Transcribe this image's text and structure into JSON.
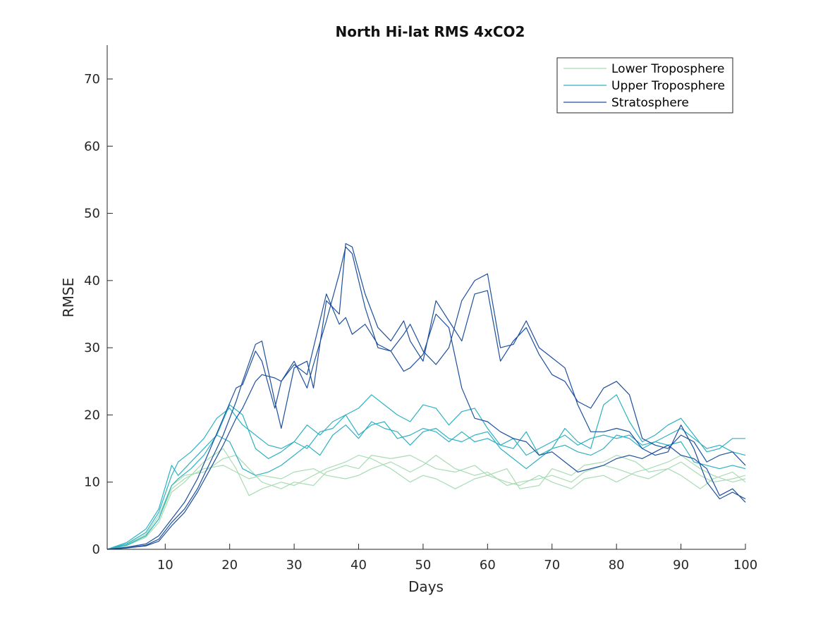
{
  "chart_data": {
    "type": "line",
    "title": "North Hi-lat RMS 4xCO2",
    "xlabel": "Days",
    "ylabel": "RMSE",
    "xlim": [
      1,
      100
    ],
    "ylim": [
      0,
      75
    ],
    "xticks": [
      10,
      20,
      30,
      40,
      50,
      60,
      70,
      80,
      90,
      100
    ],
    "yticks": [
      0,
      10,
      20,
      30,
      40,
      50,
      60,
      70
    ],
    "grid": false,
    "legend_position": "top-right",
    "legend": [
      {
        "label": "Lower Troposphere",
        "color": "#a8dcb4"
      },
      {
        "label": "Upper Troposphere",
        "color": "#2eb1c2"
      },
      {
        "label": "Stratosphere",
        "color": "#1d4f9c"
      }
    ],
    "series": [
      {
        "group": 0,
        "color": "#a8dcb4",
        "x": [
          1,
          4,
          7,
          9,
          11,
          13,
          16,
          19,
          21,
          23,
          25,
          28,
          30,
          33,
          35,
          38,
          40,
          42,
          45,
          48,
          50,
          52,
          55,
          58,
          60,
          63,
          65,
          68,
          70,
          73,
          75,
          78,
          80,
          83,
          85,
          88,
          90,
          93,
          95,
          98,
          100
        ],
        "y": [
          0,
          0.6,
          2.0,
          4.5,
          9.0,
          10.5,
          12.0,
          12.5,
          11.5,
          10.5,
          11.0,
          10.5,
          11.5,
          12.0,
          11.0,
          10.5,
          11.0,
          12.0,
          13.0,
          11.5,
          12.5,
          14.0,
          12.0,
          11.0,
          11.5,
          9.5,
          10.0,
          10.5,
          11.0,
          10.0,
          11.5,
          12.5,
          12.0,
          11.0,
          10.5,
          12.0,
          13.0,
          11.0,
          10.0,
          10.5,
          11.0
        ]
      },
      {
        "group": 0,
        "color": "#a8dcb4",
        "x": [
          1,
          4,
          7,
          9,
          11,
          13,
          16,
          19,
          21,
          23,
          25,
          28,
          30,
          33,
          35,
          38,
          40,
          42,
          45,
          48,
          50,
          52,
          55,
          58,
          60,
          63,
          65,
          68,
          70,
          73,
          75,
          78,
          80,
          83,
          85,
          88,
          90,
          93,
          95,
          98,
          100
        ],
        "y": [
          0,
          0.5,
          1.8,
          4.0,
          8.5,
          10.0,
          13.0,
          15.0,
          12.0,
          8.0,
          9.0,
          10.0,
          9.5,
          11.0,
          12.0,
          13.0,
          14.0,
          13.5,
          12.0,
          10.0,
          11.0,
          10.5,
          9.0,
          10.5,
          11.0,
          10.0,
          9.5,
          11.0,
          10.0,
          9.0,
          10.5,
          11.0,
          10.0,
          11.5,
          12.0,
          13.0,
          14.0,
          12.0,
          11.0,
          10.0,
          10.5
        ]
      },
      {
        "group": 0,
        "color": "#a8dcb4",
        "x": [
          1,
          4,
          7,
          9,
          11,
          13,
          16,
          19,
          21,
          23,
          25,
          28,
          30,
          33,
          35,
          38,
          40,
          42,
          45,
          48,
          50,
          52,
          55,
          58,
          60,
          63,
          65,
          68,
          70,
          73,
          75,
          78,
          80,
          83,
          85,
          88,
          90,
          93,
          95,
          98,
          100
        ],
        "y": [
          0,
          0.7,
          2.2,
          5.0,
          9.5,
          11.0,
          11.5,
          13.5,
          14.0,
          12.0,
          10.0,
          9.0,
          10.0,
          9.5,
          11.5,
          12.5,
          12.0,
          14.0,
          13.5,
          14.0,
          13.0,
          12.0,
          11.5,
          12.5,
          11.0,
          12.0,
          9.0,
          9.5,
          12.0,
          11.0,
          12.5,
          13.0,
          14.0,
          13.0,
          11.5,
          12.0,
          11.0,
          9.0,
          10.5,
          11.5,
          10.0
        ]
      },
      {
        "group": 1,
        "color": "#2eb1c2",
        "x": [
          1,
          4,
          7,
          9,
          11,
          12,
          14,
          16,
          18,
          20,
          22,
          24,
          26,
          28,
          30,
          32,
          34,
          36,
          38,
          40,
          42,
          44,
          46,
          48,
          50,
          52,
          54,
          56,
          58,
          60,
          62,
          64,
          66,
          68,
          70,
          72,
          74,
          76,
          78,
          80,
          82,
          84,
          86,
          88,
          90,
          92,
          94,
          96,
          98,
          100
        ],
        "y": [
          0,
          0.8,
          2.5,
          5.5,
          11.0,
          13.0,
          14.5,
          16.5,
          19.5,
          21.0,
          18.5,
          17.0,
          15.5,
          15.0,
          16.0,
          18.5,
          17.0,
          19.0,
          20.0,
          17.0,
          18.5,
          19.0,
          16.5,
          17.0,
          18.0,
          17.5,
          16.0,
          17.5,
          16.0,
          16.5,
          15.5,
          16.5,
          14.0,
          15.0,
          16.0,
          17.0,
          15.5,
          16.5,
          17.0,
          16.5,
          17.0,
          15.5,
          16.0,
          17.0,
          18.0,
          16.5,
          15.0,
          15.5,
          14.5,
          14.0
        ]
      },
      {
        "group": 1,
        "color": "#2eb1c2",
        "x": [
          1,
          4,
          7,
          9,
          11,
          12,
          14,
          16,
          18,
          20,
          22,
          24,
          26,
          28,
          30,
          32,
          34,
          36,
          38,
          40,
          42,
          44,
          46,
          48,
          50,
          52,
          54,
          56,
          58,
          60,
          62,
          64,
          66,
          68,
          70,
          72,
          74,
          76,
          78,
          80,
          82,
          84,
          86,
          88,
          90,
          92,
          94,
          96,
          98,
          100
        ],
        "y": [
          0,
          1.0,
          3.0,
          6.0,
          12.5,
          11.0,
          13.0,
          15.0,
          17.0,
          21.5,
          20.0,
          15.0,
          13.5,
          14.5,
          16.0,
          15.0,
          17.5,
          18.0,
          20.0,
          21.0,
          23.0,
          21.5,
          20.0,
          19.0,
          21.5,
          21.0,
          18.5,
          20.5,
          21.0,
          18.0,
          15.5,
          15.0,
          17.5,
          14.0,
          15.0,
          18.0,
          16.0,
          15.0,
          21.5,
          23.0,
          19.0,
          16.0,
          17.0,
          18.5,
          19.5,
          17.0,
          14.5,
          15.0,
          16.5,
          16.5
        ]
      },
      {
        "group": 1,
        "color": "#2eb1c2",
        "x": [
          1,
          4,
          7,
          9,
          11,
          12,
          14,
          16,
          18,
          20,
          22,
          24,
          26,
          28,
          30,
          32,
          34,
          36,
          38,
          40,
          42,
          44,
          46,
          48,
          50,
          52,
          54,
          56,
          58,
          60,
          62,
          64,
          66,
          68,
          70,
          72,
          74,
          76,
          78,
          80,
          82,
          84,
          86,
          88,
          90,
          92,
          94,
          96,
          98,
          100
        ],
        "y": [
          0,
          0.6,
          2.0,
          4.5,
          9.5,
          10.5,
          12.0,
          14.0,
          17.0,
          16.0,
          12.0,
          11.0,
          11.5,
          12.5,
          14.0,
          15.5,
          14.0,
          17.0,
          18.5,
          16.5,
          19.0,
          18.0,
          17.5,
          15.5,
          17.5,
          18.0,
          16.5,
          16.0,
          17.0,
          17.5,
          15.0,
          13.5,
          12.0,
          13.5,
          15.0,
          15.5,
          14.5,
          14.0,
          15.0,
          17.0,
          16.5,
          15.0,
          16.0,
          15.5,
          16.0,
          13.0,
          12.5,
          12.0,
          12.5,
          12.0
        ]
      },
      {
        "group": 2,
        "color": "#1d4f9c",
        "x": [
          1,
          4,
          7,
          9,
          11,
          13,
          15,
          17,
          19,
          21,
          22,
          24,
          25,
          27,
          28,
          30,
          32,
          33,
          35,
          37,
          38,
          39,
          41,
          43,
          45,
          47,
          48,
          50,
          52,
          54,
          56,
          58,
          60,
          62,
          64,
          66,
          68,
          70,
          72,
          74,
          76,
          78,
          80,
          82,
          84,
          86,
          88,
          90,
          92,
          94,
          96,
          98,
          100
        ],
        "y": [
          0,
          0.2,
          0.6,
          1.5,
          4.0,
          6.0,
          9.0,
          13.0,
          17.0,
          22.0,
          25.0,
          30.5,
          31.0,
          22.0,
          18.0,
          27.0,
          28.0,
          24.0,
          37.0,
          35.0,
          45.5,
          45.0,
          38.0,
          33.0,
          31.0,
          34.0,
          31.0,
          28.0,
          37.0,
          34.0,
          31.0,
          38.0,
          38.5,
          28.0,
          31.0,
          33.0,
          29.0,
          26.0,
          25.0,
          22.0,
          21.0,
          24.0,
          25.0,
          23.0,
          16.5,
          15.5,
          15.0,
          17.0,
          16.0,
          13.0,
          14.0,
          14.5,
          12.5
        ]
      },
      {
        "group": 2,
        "color": "#1d4f9c",
        "x": [
          1,
          4,
          7,
          9,
          11,
          13,
          15,
          17,
          19,
          21,
          22,
          24,
          25,
          27,
          28,
          30,
          32,
          33,
          35,
          37,
          38,
          39,
          41,
          43,
          45,
          47,
          48,
          50,
          52,
          54,
          56,
          58,
          60,
          62,
          64,
          66,
          68,
          70,
          72,
          74,
          76,
          78,
          80,
          82,
          84,
          86,
          88,
          90,
          92,
          94,
          96,
          98,
          100
        ],
        "y": [
          0,
          0.3,
          0.8,
          2.0,
          4.5,
          7.0,
          10.5,
          15.0,
          19.5,
          24.0,
          24.5,
          29.5,
          28.0,
          21.0,
          25.0,
          27.5,
          26.0,
          30.0,
          38.0,
          33.5,
          34.5,
          32.0,
          33.5,
          30.5,
          29.5,
          26.5,
          27.0,
          29.0,
          35.0,
          33.0,
          24.0,
          19.5,
          19.0,
          17.5,
          16.5,
          16.0,
          14.0,
          14.5,
          13.0,
          11.5,
          12.0,
          12.5,
          13.5,
          14.0,
          13.5,
          14.5,
          15.5,
          14.0,
          13.5,
          12.0,
          8.0,
          9.0,
          7.0
        ]
      },
      {
        "group": 2,
        "color": "#1d4f9c",
        "x": [
          1,
          4,
          7,
          9,
          11,
          13,
          15,
          17,
          19,
          21,
          22,
          24,
          25,
          27,
          28,
          30,
          32,
          33,
          35,
          37,
          38,
          39,
          41,
          43,
          45,
          47,
          48,
          50,
          52,
          54,
          56,
          58,
          60,
          62,
          64,
          66,
          68,
          70,
          72,
          74,
          76,
          78,
          80,
          82,
          84,
          86,
          88,
          90,
          92,
          94,
          96,
          98,
          100
        ],
        "y": [
          0,
          0.2,
          0.5,
          1.2,
          3.5,
          5.5,
          8.5,
          12.0,
          15.5,
          19.5,
          21.0,
          25.0,
          26.0,
          25.5,
          25.0,
          28.0,
          24.0,
          27.5,
          34.0,
          41.0,
          45.0,
          44.0,
          36.0,
          30.0,
          29.5,
          32.0,
          33.5,
          29.5,
          27.5,
          30.0,
          37.0,
          40.0,
          41.0,
          30.0,
          30.5,
          34.0,
          30.0,
          28.5,
          27.0,
          21.5,
          17.5,
          17.5,
          18.0,
          17.5,
          15.0,
          14.0,
          14.5,
          18.5,
          15.0,
          10.0,
          7.5,
          8.5,
          7.5
        ]
      }
    ]
  }
}
